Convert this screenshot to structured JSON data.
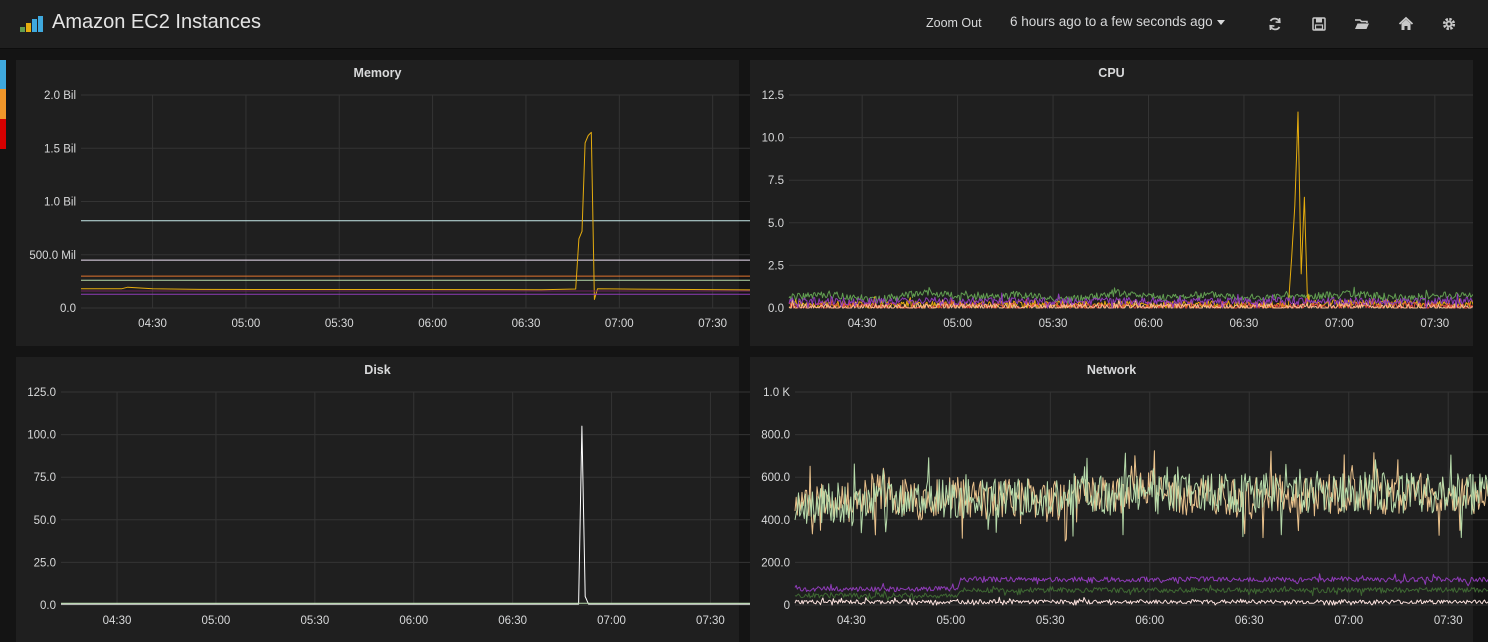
{
  "header": {
    "title": "Amazon EC2 Instances",
    "zoom_out": "Zoom Out",
    "time_range": "6 hours ago to a few seconds ago",
    "icons": [
      "refresh-icon",
      "save-icon",
      "folder-open-icon",
      "home-icon",
      "gear-icon"
    ]
  },
  "colors": {
    "row_markers": [
      "#3fa9de",
      "#f0962a",
      "#d60000"
    ]
  },
  "chart_data": [
    {
      "id": "memory",
      "type": "line",
      "title": "Memory",
      "x_ticks": [
        "04:30",
        "05:00",
        "05:30",
        "06:00",
        "06:30",
        "07:00",
        "07:30"
      ],
      "y_ticks": [
        "0.0",
        "500.0 Mil",
        "1.0 Bil",
        "1.5 Bil",
        "2.0 Bil"
      ],
      "xlim": [
        "04:07",
        "07:42"
      ],
      "ylim": [
        0,
        2000000000
      ],
      "series": [
        {
          "color": "#c5e8e8",
          "points": [
            [
              "04:07",
              820000000
            ],
            [
              "07:42",
              820000000
            ]
          ]
        },
        {
          "color": "#ede0f3",
          "points": [
            [
              "04:07",
              450000000
            ],
            [
              "07:42",
              450000000
            ]
          ]
        },
        {
          "color": "#e0752d",
          "points": [
            [
              "04:07",
              300000000
            ],
            [
              "07:42",
              300000000
            ]
          ]
        },
        {
          "color": "#b7dbab",
          "points": [
            [
              "04:07",
              260000000
            ],
            [
              "07:42",
              260000000
            ]
          ]
        },
        {
          "color": "#e5ac0e",
          "points": [
            [
              "04:07",
              180000000
            ],
            [
              "04:20",
              180000000
            ],
            [
              "04:22",
              195000000
            ],
            [
              "04:30",
              180000000
            ],
            [
              "04:45",
              175000000
            ],
            [
              "06:35",
              172000000
            ],
            [
              "06:46",
              178000000
            ],
            [
              "06:47",
              650000000
            ],
            [
              "06:48",
              720000000
            ],
            [
              "06:49",
              1550000000
            ],
            [
              "06:50",
              1620000000
            ],
            [
              "06:51",
              1650000000
            ],
            [
              "06:52",
              80000000
            ],
            [
              "06:53",
              180000000
            ],
            [
              "07:42",
              170000000
            ]
          ]
        },
        {
          "color": "#6d1f62",
          "points": [
            [
              "04:07",
              160000000
            ],
            [
              "07:42",
              160000000
            ]
          ]
        },
        {
          "color": "#8f3bb8",
          "points": [
            [
              "04:07",
              130000000
            ],
            [
              "07:42",
              130000000
            ]
          ]
        }
      ]
    },
    {
      "id": "cpu",
      "type": "line",
      "title": "CPU",
      "x_ticks": [
        "04:30",
        "05:00",
        "05:30",
        "06:00",
        "06:30",
        "07:00",
        "07:30"
      ],
      "y_ticks": [
        "0.0",
        "2.5",
        "5.0",
        "7.5",
        "10.0",
        "12.5"
      ],
      "xlim": [
        "04:07",
        "07:42"
      ],
      "ylim": [
        0,
        12.5
      ],
      "series": [
        {
          "color": "#629e51",
          "points": [
            [
              "04:07",
              0.6
            ],
            [
              "04:20",
              0.8
            ],
            [
              "04:35",
              0.5
            ],
            [
              "04:50",
              0.9
            ],
            [
              "05:05",
              0.6
            ],
            [
              "05:20",
              0.8
            ],
            [
              "05:35",
              0.5
            ],
            [
              "05:50",
              0.9
            ],
            [
              "06:05",
              0.6
            ],
            [
              "06:20",
              0.8
            ],
            [
              "06:35",
              0.6
            ],
            [
              "06:50",
              0.7
            ],
            [
              "07:05",
              0.8
            ],
            [
              "07:20",
              0.6
            ],
            [
              "07:42",
              0.8
            ]
          ]
        },
        {
          "color": "#e5ac0e",
          "points": [
            [
              "04:07",
              0.2
            ],
            [
              "06:44",
              0.2
            ],
            [
              "06:45",
              3.0
            ],
            [
              "06:46",
              6.0
            ],
            [
              "06:47",
              11.5
            ],
            [
              "06:48",
              2.0
            ],
            [
              "06:49",
              6.5
            ],
            [
              "06:50",
              0.3
            ],
            [
              "07:42",
              0.2
            ]
          ]
        },
        {
          "color": "#e24d42",
          "points": [
            [
              "04:07",
              0.1
            ],
            [
              "07:42",
              0.1
            ]
          ]
        },
        {
          "color": "#f9ba8f",
          "points": [
            [
              "04:07",
              0.05
            ],
            [
              "07:42",
              0.05
            ]
          ]
        },
        {
          "color": "#8f3bb8",
          "points": [
            [
              "04:07",
              0.4
            ],
            [
              "07:42",
              0.4
            ]
          ]
        }
      ]
    },
    {
      "id": "disk",
      "type": "line",
      "title": "Disk",
      "x_ticks": [
        "04:30",
        "05:00",
        "05:30",
        "06:00",
        "06:30",
        "07:00",
        "07:30"
      ],
      "y_ticks": [
        "0.0",
        "25.0",
        "50.0",
        "75.0",
        "100.0",
        "125.0"
      ],
      "xlim": [
        "04:13",
        "07:42"
      ],
      "ylim": [
        0,
        125
      ],
      "series": [
        {
          "color": "#ffffff",
          "points": [
            [
              "04:13",
              0.5
            ],
            [
              "06:50",
              0.5
            ],
            [
              "06:51",
              105
            ],
            [
              "06:52",
              5
            ],
            [
              "06:53",
              0.5
            ],
            [
              "07:42",
              0.5
            ]
          ]
        },
        {
          "color": "#b7dbab",
          "points": [
            [
              "04:13",
              1
            ],
            [
              "07:42",
              1
            ]
          ]
        }
      ]
    },
    {
      "id": "network",
      "type": "line",
      "title": "Network",
      "x_ticks": [
        "04:30",
        "05:00",
        "05:30",
        "06:00",
        "06:30",
        "07:00",
        "07:30"
      ],
      "y_ticks": [
        "0",
        "200.0",
        "400.0",
        "600.0",
        "800.0",
        "1.0 K"
      ],
      "xlim": [
        "04:13",
        "07:42"
      ],
      "ylim": [
        0,
        1000
      ],
      "series": [
        {
          "color": "#eac28c",
          "points": [
            [
              "04:13",
              450
            ],
            [
              "04:20",
              520
            ],
            [
              "04:30",
              480
            ],
            [
              "04:40",
              550
            ],
            [
              "04:50",
              470
            ],
            [
              "05:00",
              520
            ],
            [
              "05:10",
              490
            ],
            [
              "05:20",
              510
            ],
            [
              "05:30",
              480
            ],
            [
              "05:40",
              530
            ],
            [
              "05:50",
              500
            ],
            [
              "06:00",
              540
            ],
            [
              "06:10",
              500
            ],
            [
              "06:20",
              520
            ],
            [
              "06:30",
              490
            ],
            [
              "06:40",
              530
            ],
            [
              "06:50",
              510
            ],
            [
              "07:00",
              530
            ],
            [
              "07:10",
              510
            ],
            [
              "07:20",
              540
            ],
            [
              "07:30",
              520
            ],
            [
              "07:42",
              510
            ]
          ]
        },
        {
          "color": "#b7dbab",
          "points": [
            [
              "04:13",
              470
            ],
            [
              "05:00",
              500
            ],
            [
              "06:00",
              520
            ],
            [
              "07:00",
              530
            ],
            [
              "07:42",
              520
            ]
          ]
        },
        {
          "color": "#8f3bb8",
          "points": [
            [
              "04:13",
              75
            ],
            [
              "05:02",
              75
            ],
            [
              "05:03",
              120
            ],
            [
              "07:35",
              120
            ],
            [
              "07:36",
              90
            ],
            [
              "07:37",
              120
            ],
            [
              "07:42",
              120
            ]
          ]
        },
        {
          "color": "#3f6833",
          "points": [
            [
              "04:13",
              45
            ],
            [
              "05:02",
              45
            ],
            [
              "05:03",
              70
            ],
            [
              "07:42",
              70
            ]
          ]
        },
        {
          "color": "#fce2de",
          "points": [
            [
              "04:13",
              15
            ],
            [
              "07:42",
              15
            ]
          ]
        }
      ]
    }
  ]
}
